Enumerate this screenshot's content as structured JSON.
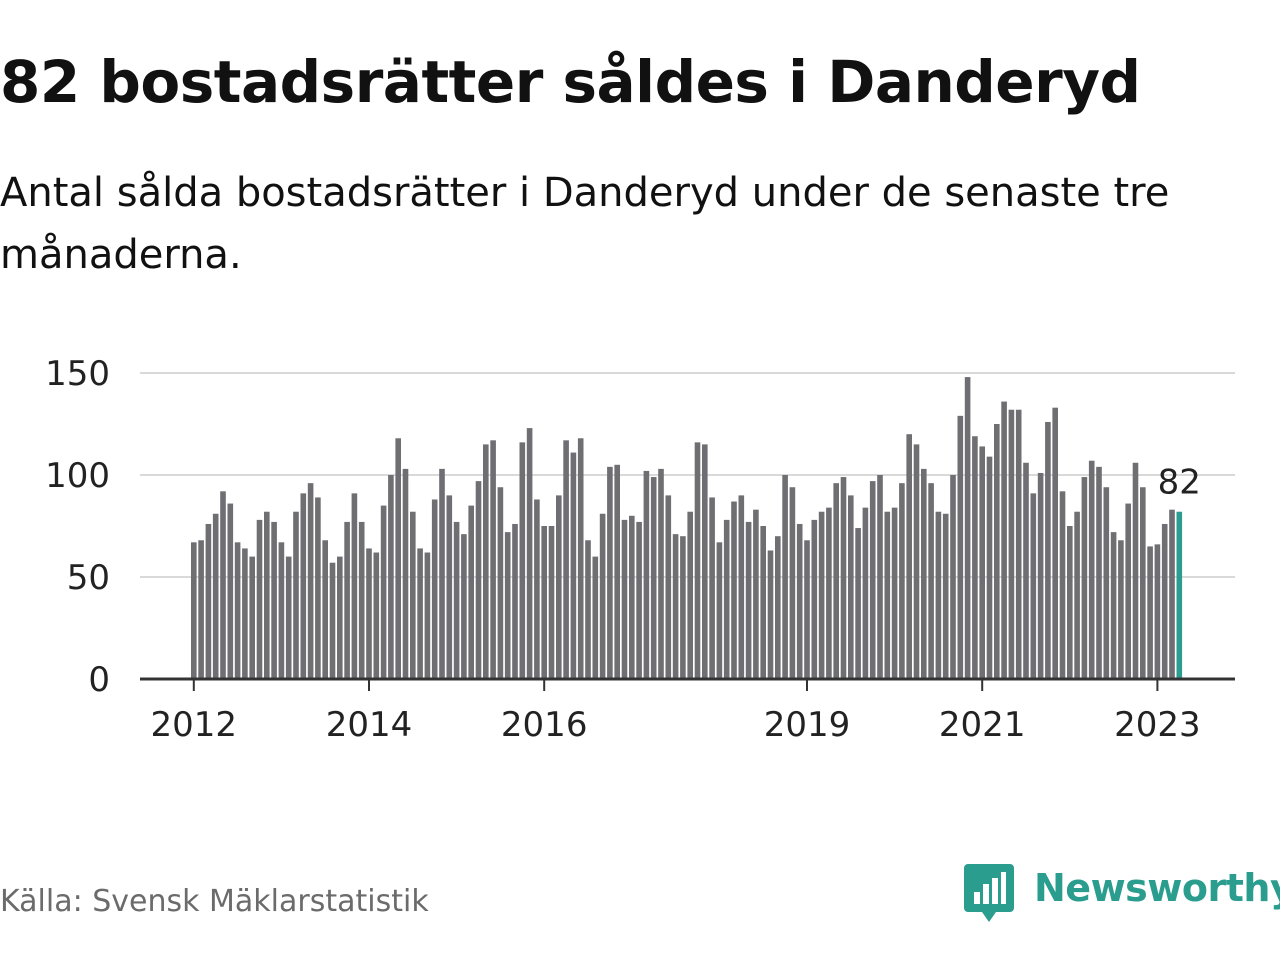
{
  "title": "82 bostadsrätter såldes i Danderyd",
  "subtitle": "Antal sålda bostadsrätter i Danderyd under de senaste tre månaderna.",
  "source": "Källa: Svensk Mäklarstatistik",
  "brand": {
    "name": "Newsworthy",
    "icon": "newsworthy-logo-icon",
    "color": "#2a9d8f"
  },
  "chart_data": {
    "type": "bar",
    "title": "82 bostadsrätter såldes i Danderyd",
    "subtitle": "Antal sålda bostadsrätter i Danderyd under de senaste tre månaderna.",
    "xlabel": "",
    "ylabel": "",
    "ylim": [
      0,
      150
    ],
    "yticks": [
      0,
      50,
      100,
      150
    ],
    "grid": true,
    "start": "2012-01",
    "xticks": [
      {
        "label": "2012",
        "index": 0
      },
      {
        "label": "2014",
        "index": 24
      },
      {
        "label": "2016",
        "index": 48
      },
      {
        "label": "2019",
        "index": 84
      },
      {
        "label": "2021",
        "index": 108
      },
      {
        "label": "2023",
        "index": 132
      }
    ],
    "bar_color": "#6e6e73",
    "highlight_color": "#2a9d8f",
    "highlight_label": "82",
    "series": [
      {
        "name": "Antal sålda bostadsrätter (senaste tre månaderna)",
        "values": [
          67,
          68,
          76,
          81,
          92,
          86,
          67,
          64,
          60,
          78,
          82,
          77,
          67,
          60,
          82,
          91,
          96,
          89,
          68,
          57,
          60,
          77,
          91,
          77,
          64,
          62,
          85,
          100,
          118,
          103,
          82,
          64,
          62,
          88,
          103,
          90,
          77,
          71,
          85,
          97,
          115,
          117,
          94,
          72,
          76,
          116,
          123,
          88,
          75,
          75,
          90,
          117,
          111,
          118,
          68,
          60,
          81,
          104,
          105,
          78,
          80,
          77,
          102,
          99,
          103,
          90,
          71,
          70,
          82,
          116,
          115,
          89,
          67,
          78,
          87,
          90,
          77,
          83,
          75,
          63,
          70,
          100,
          94,
          76,
          68,
          78,
          82,
          84,
          96,
          99,
          90,
          74,
          84,
          97,
          100,
          82,
          84,
          96,
          120,
          115,
          103,
          96,
          82,
          81,
          100,
          129,
          148,
          119,
          114,
          109,
          125,
          136,
          132,
          132,
          106,
          91,
          101,
          126,
          133,
          92,
          75,
          82,
          99,
          107,
          104,
          94,
          72,
          68,
          86,
          106,
          94,
          65,
          66,
          76,
          83,
          82
        ]
      }
    ]
  }
}
